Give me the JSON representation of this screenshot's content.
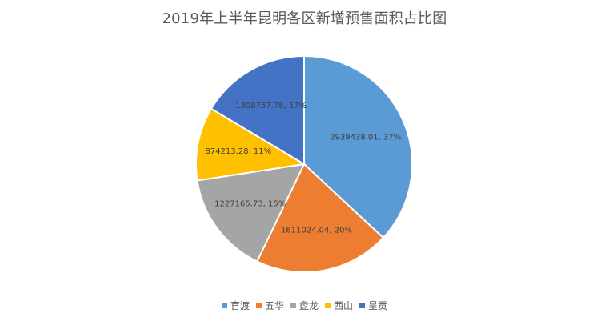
{
  "chart_data": {
    "type": "pie",
    "title": "2019年上半年昆明各区新增预售面积占比图",
    "categories": [
      "官渡",
      "五华",
      "盘龙",
      "西山",
      "呈贡"
    ],
    "values": [
      2939438.01,
      1611024.04,
      1227165.73,
      874213.28,
      1308757.78
    ],
    "percent_labels": [
      "37%",
      "20%",
      "15%",
      "11%",
      "17%"
    ],
    "data_labels": [
      "2939438.01, 37%",
      "1611024.04, 20%",
      "1227165.73, 15%",
      "874213.28, 11%",
      "1308757.78, 17%"
    ],
    "colors": [
      "#5B9BD5",
      "#ED7D31",
      "#A5A5A5",
      "#FFC000",
      "#4472C4"
    ],
    "legend_position": "bottom",
    "start_angle": "12 o'clock",
    "direction": "clockwise"
  }
}
